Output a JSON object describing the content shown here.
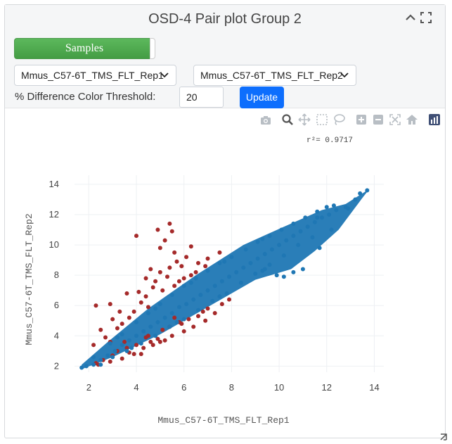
{
  "panel": {
    "title": "OSD-4 Pair plot Group 2"
  },
  "controls": {
    "samples_label": "Samples",
    "select_x_value": "Mmus_C57-6T_TMS_FLT_Rep1",
    "select_y_value": "Mmus_C57-6T_TMS_FLT_Rep2",
    "threshold_label": "% Difference Color Threshold:",
    "threshold_value": "20",
    "update_label": "Update"
  },
  "modebar": [
    "camera-icon",
    "zoom-icon",
    "pan-icon",
    "box-select-icon",
    "lasso-icon",
    "zoom-in-icon",
    "zoom-out-icon",
    "autoscale-icon",
    "reset-axes-icon",
    "plotly-logo-icon"
  ],
  "colors": {
    "inlier": "#1f77b4",
    "outlier": "#a52a2a",
    "accent_button": "#0d6efd",
    "samples_button": "#5cb85c"
  },
  "chart_data": {
    "type": "scatter",
    "xlabel": "Mmus_C57-6T_TMS_FLT_Rep1",
    "ylabel": "Mmus_C57-6T_TMS_FLT_Rep2",
    "annotation": "r²= 0.9717",
    "xlim": [
      1.4,
      14.4
    ],
    "ylim": [
      1.6,
      14.6
    ],
    "x_ticks": [
      2,
      4,
      6,
      8,
      10,
      12,
      14
    ],
    "y_ticks": [
      2,
      4,
      6,
      8,
      10,
      12,
      14
    ],
    "grid": true,
    "legend": "none",
    "series": [
      {
        "color": "#a52a2a",
        "points": [
          [
            4.0,
            10.6
          ],
          [
            4.9,
            11.0
          ],
          [
            5.4,
            11.4
          ],
          [
            5.5,
            10.9
          ],
          [
            5.2,
            10.3
          ],
          [
            6.3,
            9.9
          ],
          [
            5.6,
            9.5
          ],
          [
            5.0,
            9.8
          ],
          [
            4.6,
            8.4
          ],
          [
            4.4,
            7.8
          ],
          [
            5.9,
            8.6
          ],
          [
            6.1,
            9.2
          ],
          [
            5.0,
            8.2
          ],
          [
            3.6,
            6.8
          ],
          [
            2.9,
            6.1
          ],
          [
            2.3,
            6.0
          ],
          [
            3.0,
            5.1
          ],
          [
            2.5,
            4.4
          ],
          [
            2.2,
            3.4
          ],
          [
            2.9,
            3.6
          ],
          [
            3.2,
            4.5
          ],
          [
            4.2,
            6.2
          ],
          [
            4.7,
            7.2
          ],
          [
            5.3,
            7.9
          ],
          [
            5.8,
            7.6
          ],
          [
            6.6,
            8.8
          ],
          [
            7.0,
            9.1
          ],
          [
            7.5,
            9.5
          ],
          [
            3.9,
            5.6
          ],
          [
            4.4,
            6.6
          ],
          [
            5.1,
            7.0
          ],
          [
            6.3,
            8.0
          ],
          [
            3.4,
            4.8
          ],
          [
            2.7,
            3.9
          ],
          [
            3.7,
            5.2
          ],
          [
            4.5,
            5.9
          ],
          [
            5.6,
            7.3
          ],
          [
            6.0,
            7.8
          ],
          [
            6.9,
            8.6
          ],
          [
            4.1,
            6.9
          ],
          [
            5.7,
            8.9
          ],
          [
            6.5,
            8.2
          ],
          [
            3.3,
            5.6
          ],
          [
            4.8,
            7.6
          ],
          [
            5.4,
            8.5
          ],
          [
            2.4,
            2.1
          ],
          [
            2.9,
            2.3
          ],
          [
            3.4,
            2.5
          ],
          [
            3.9,
            2.8
          ],
          [
            4.3,
            3.2
          ],
          [
            4.7,
            3.4
          ],
          [
            5.2,
            3.7
          ],
          [
            5.5,
            4.0
          ],
          [
            6.0,
            4.3
          ],
          [
            6.4,
            4.6
          ],
          [
            6.9,
            5.0
          ],
          [
            7.3,
            5.5
          ],
          [
            5.8,
            4.9
          ],
          [
            5.1,
            4.4
          ],
          [
            4.5,
            4.0
          ],
          [
            3.6,
            3.2
          ],
          [
            3.0,
            2.7
          ],
          [
            5.4,
            4.6
          ],
          [
            6.2,
            5.1
          ],
          [
            4.0,
            3.4
          ],
          [
            4.9,
            3.8
          ],
          [
            6.6,
            5.3
          ],
          [
            7.0,
            5.8
          ],
          [
            3.7,
            2.9
          ],
          [
            4.2,
            2.8
          ],
          [
            5.0,
            3.6
          ],
          [
            4.6,
            3.6
          ],
          [
            7.6,
            6.1
          ],
          [
            6.8,
            5.6
          ],
          [
            7.9,
            6.4
          ],
          [
            3.2,
            3.0
          ],
          [
            2.6,
            2.4
          ],
          [
            5.6,
            5.2
          ],
          [
            4.4,
            3.9
          ],
          [
            2.3,
            2.2
          ],
          [
            3.5,
            3.6
          ],
          [
            5.9,
            4.8
          ]
        ]
      },
      {
        "color": "#1f77b4",
        "points": [
          [
            1.7,
            1.9
          ],
          [
            1.9,
            2.0
          ],
          [
            2.2,
            2.1
          ],
          [
            2.5,
            2.4
          ],
          [
            2.8,
            2.7
          ],
          [
            3.1,
            3.0
          ],
          [
            3.4,
            3.4
          ],
          [
            3.7,
            3.7
          ],
          [
            4.0,
            4.0
          ],
          [
            4.3,
            4.3
          ],
          [
            4.6,
            4.6
          ],
          [
            4.9,
            4.9
          ],
          [
            5.2,
            5.2
          ],
          [
            5.5,
            5.5
          ],
          [
            5.8,
            5.9
          ],
          [
            6.1,
            6.1
          ],
          [
            6.4,
            6.4
          ],
          [
            6.7,
            6.7
          ],
          [
            7.0,
            7.0
          ],
          [
            7.3,
            7.3
          ],
          [
            7.6,
            7.6
          ],
          [
            7.9,
            7.9
          ],
          [
            8.2,
            8.2
          ],
          [
            8.5,
            8.5
          ],
          [
            8.8,
            8.8
          ],
          [
            9.1,
            9.1
          ],
          [
            9.4,
            9.4
          ],
          [
            9.7,
            9.7
          ],
          [
            10.0,
            10.0
          ],
          [
            10.3,
            10.3
          ],
          [
            10.6,
            10.6
          ],
          [
            10.9,
            10.9
          ],
          [
            11.2,
            11.2
          ],
          [
            11.5,
            11.5
          ],
          [
            11.8,
            11.8
          ],
          [
            12.1,
            12.0
          ],
          [
            12.4,
            12.3
          ],
          [
            12.8,
            12.5
          ],
          [
            13.2,
            13.0
          ],
          [
            13.4,
            13.4
          ],
          [
            13.7,
            13.6
          ],
          [
            12.3,
            12.6
          ],
          [
            11.6,
            11.8
          ],
          [
            12.9,
            12.4
          ],
          [
            2.2,
            2.6
          ],
          [
            2.9,
            3.5
          ],
          [
            3.4,
            4.1
          ],
          [
            4.0,
            4.9
          ],
          [
            4.5,
            5.5
          ],
          [
            5.0,
            6.1
          ],
          [
            5.5,
            6.7
          ],
          [
            6.0,
            7.3
          ],
          [
            6.5,
            7.8
          ],
          [
            7.0,
            8.3
          ],
          [
            7.5,
            8.8
          ],
          [
            8.0,
            9.2
          ],
          [
            8.6,
            9.7
          ],
          [
            9.1,
            10.2
          ],
          [
            9.6,
            10.6
          ],
          [
            10.1,
            11.0
          ],
          [
            10.6,
            11.4
          ],
          [
            11.1,
            11.8
          ],
          [
            11.6,
            12.2
          ],
          [
            12.0,
            12.5
          ],
          [
            2.5,
            2.1
          ],
          [
            3.0,
            2.6
          ],
          [
            3.6,
            3.0
          ],
          [
            4.2,
            3.5
          ],
          [
            4.8,
            4.0
          ],
          [
            5.4,
            4.6
          ],
          [
            6.0,
            5.1
          ],
          [
            6.6,
            5.7
          ],
          [
            7.2,
            6.3
          ],
          [
            7.8,
            6.8
          ],
          [
            8.4,
            7.5
          ],
          [
            9.0,
            8.1
          ],
          [
            9.6,
            8.7
          ],
          [
            10.2,
            9.3
          ],
          [
            10.8,
            10.0
          ],
          [
            11.4,
            10.5
          ],
          [
            9.9,
            8.0
          ],
          [
            10.2,
            7.9
          ],
          [
            11.0,
            8.4
          ],
          [
            10.6,
            8.2
          ],
          [
            9.4,
            8.4
          ],
          [
            11.7,
            9.8
          ],
          [
            12.2,
            11.0
          ],
          [
            3.2,
            3.9
          ],
          [
            4.8,
            5.8
          ],
          [
            6.3,
            7.5
          ],
          [
            7.7,
            8.9
          ],
          [
            9.3,
            10.4
          ],
          [
            3.8,
            3.2
          ],
          [
            5.7,
            4.9
          ],
          [
            7.5,
            6.6
          ],
          [
            9.3,
            8.3
          ]
        ]
      }
    ]
  }
}
